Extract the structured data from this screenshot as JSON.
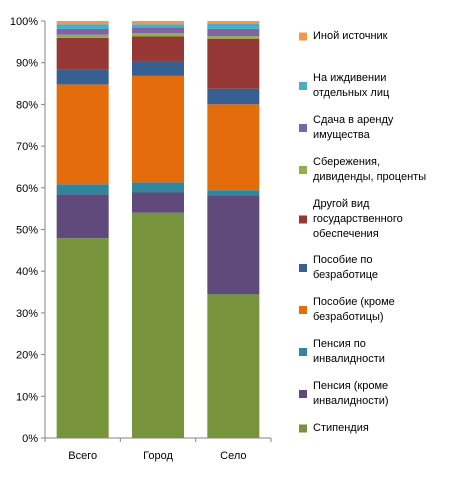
{
  "chart_data": {
    "type": "bar",
    "stacked": true,
    "percent": true,
    "categories": [
      "Всего",
      "Город",
      "Село"
    ],
    "ylim": [
      0,
      100
    ],
    "yticks": [
      0,
      10,
      20,
      30,
      40,
      50,
      60,
      70,
      80,
      90,
      100
    ],
    "ytick_suffix": "%",
    "grid": false,
    "legend_position": "right",
    "series": [
      {
        "name": "Стипендия",
        "color": "#77933c",
        "values": [
          37.8,
          42.3,
          27.6
        ]
      },
      {
        "name": "Пенсия (кроме инвалидности)",
        "color": "#5f4a7b",
        "values": [
          8.3,
          3.8,
          19.0
        ]
      },
      {
        "name": "Пенсия по инвалидности",
        "color": "#31859c",
        "values": [
          1.9,
          1.9,
          1.0
        ]
      },
      {
        "name": "Пособие (кроме безработицы)",
        "color": "#e46c0a",
        "values": [
          18.9,
          20.0,
          16.5
        ]
      },
      {
        "name": "Пособие по безработице",
        "color": "#376092",
        "values": [
          2.9,
          2.8,
          3.0
        ]
      },
      {
        "name": "Другой вид государственного обеспечения",
        "color": "#953735",
        "values": [
          5.9,
          4.6,
          9.6
        ]
      },
      {
        "name": "Сбережения, дивиденды, проценты",
        "color": "#8eb04d",
        "values": [
          0.6,
          0.6,
          0.5
        ]
      },
      {
        "name": "Сдача в аренду имущества",
        "color": "#8064a2",
        "values": [
          1.1,
          1.1,
          1.4
        ]
      },
      {
        "name": "На иждивении отдельных лиц",
        "color": "#4bacc6",
        "values": [
          0.9,
          0.6,
          1.0
        ]
      },
      {
        "name": "Иной источник",
        "color": "#f79646",
        "values": [
          0.6,
          0.6,
          0.5
        ]
      }
    ],
    "legend_order": [
      "Иной источник",
      "На иждивении отдельных лиц",
      "Сдача в аренду имущества",
      "Сбережения, дивиденды, проценты",
      "Другой вид государственного обеспечения",
      "Пособие по безработице",
      "Пособие (кроме безработицы)",
      "Пенсия по инвалидности",
      "Пенсия (кроме инвалидности)",
      "Стипендия"
    ],
    "legend_lines": [
      [
        "Иной источник"
      ],
      [
        "На иждивении",
        "отдельных лиц"
      ],
      [
        "Сдача в аренду",
        "имущества"
      ],
      [
        "Сбережения,",
        "дивиденды, проценты"
      ],
      [
        "Другой вид",
        "государственного",
        "обеспечения"
      ],
      [
        "Пособие по",
        "безработице"
      ],
      [
        "Пособие (кроме",
        "безработицы)"
      ],
      [
        "Пенсия по",
        "инвалидности"
      ],
      [
        "Пенсия (кроме",
        "инвалидности)"
      ],
      [
        "Стипендия"
      ]
    ]
  }
}
